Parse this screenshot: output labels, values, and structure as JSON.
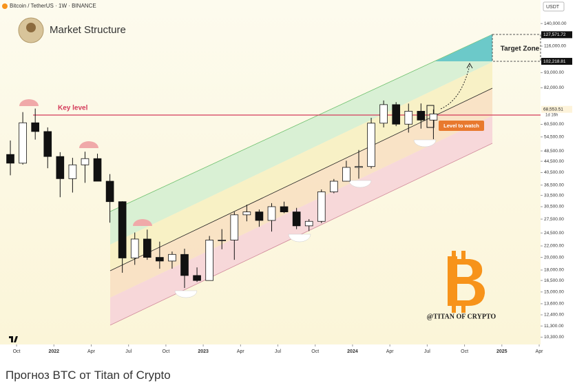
{
  "chart_data": {
    "type": "candlestick",
    "title": "Market Structure",
    "subtitle": "Bitcoin / TetherUS · 1W · BINANCE",
    "currency": "USDT",
    "countdown": "1d 16h",
    "annotations": {
      "key_level": "Key level",
      "level_to_watch": "Level to watch",
      "target_zone": "Target Zone",
      "watermark": "@TITAN OF CRYPTO"
    },
    "log": true,
    "xlim": [
      "2021-09",
      "2025-04"
    ],
    "xticks": [
      {
        "value": "2021-10",
        "label": "Oct"
      },
      {
        "value": "2022-01",
        "label": "2022"
      },
      {
        "value": "2022-04",
        "label": "Apr"
      },
      {
        "value": "2022-07",
        "label": "Jul"
      },
      {
        "value": "2022-10",
        "label": "Oct"
      },
      {
        "value": "2023-01",
        "label": "2023"
      },
      {
        "value": "2023-04",
        "label": "Apr"
      },
      {
        "value": "2023-07",
        "label": "Jul"
      },
      {
        "value": "2023-10",
        "label": "Oct"
      },
      {
        "value": "2024-01",
        "label": "2024"
      },
      {
        "value": "2024-04",
        "label": "Apr"
      },
      {
        "value": "2024-07",
        "label": "Jul"
      },
      {
        "value": "2024-10",
        "label": "Oct"
      },
      {
        "value": "2025-01",
        "label": "2025"
      },
      {
        "value": "2025-04",
        "label": "Apr"
      }
    ],
    "ylim": [
      9690,
      170300
    ],
    "yticks": [
      {
        "value": 140000,
        "label": "140,000.00"
      },
      {
        "value": 116000,
        "label": "116,000.00"
      },
      {
        "value": 93000,
        "label": "93,000.00"
      },
      {
        "value": 82000,
        "label": "82,000.00"
      },
      {
        "value": 60500,
        "label": "60,500.00"
      },
      {
        "value": 54500,
        "label": "54,500.00"
      },
      {
        "value": 48500,
        "label": "48,500.00"
      },
      {
        "value": 44500,
        "label": "44,500.00"
      },
      {
        "value": 40500,
        "label": "40,500.00"
      },
      {
        "value": 36500,
        "label": "36,500.00"
      },
      {
        "value": 33500,
        "label": "33,500.00"
      },
      {
        "value": 30500,
        "label": "30,500.00"
      },
      {
        "value": 27500,
        "label": "27,500.00"
      },
      {
        "value": 24500,
        "label": "24,500.00"
      },
      {
        "value": 22000,
        "label": "22,000.00"
      },
      {
        "value": 20000,
        "label": "20,000.00"
      },
      {
        "value": 18000,
        "label": "18,000.00"
      },
      {
        "value": 16500,
        "label": "16,500.00"
      },
      {
        "value": 15000,
        "label": "15,000.00"
      },
      {
        "value": 13600,
        "label": "13,600.00"
      },
      {
        "value": 12400,
        "label": "12,400.00"
      },
      {
        "value": 11300,
        "label": "11,300.00"
      },
      {
        "value": 10300,
        "label": "10,300.00"
      }
    ],
    "price_labels": [
      {
        "value": 127571.72,
        "label": "127,571.72"
      },
      {
        "value": 102218.81,
        "label": "102,218.81"
      },
      {
        "value": 68553.51,
        "label": "68,553.51"
      }
    ],
    "x": [
      "2021-09",
      "2021-10",
      "2021-11",
      "2021-12",
      "2022-01",
      "2022-02",
      "2022-03",
      "2022-04",
      "2022-05",
      "2022-06",
      "2022-07",
      "2022-08",
      "2022-09",
      "2022-10",
      "2022-11",
      "2022-12",
      "2023-01",
      "2023-02",
      "2023-03",
      "2023-04",
      "2023-05",
      "2023-06",
      "2023-07",
      "2023-08",
      "2023-09",
      "2023-10",
      "2023-11",
      "2023-12",
      "2024-01",
      "2024-02",
      "2024-03",
      "2024-04",
      "2024-05",
      "2024-06",
      "2024-07"
    ],
    "open": [
      47100,
      43800,
      61300,
      57000,
      46300,
      38500,
      43200,
      45500,
      37700,
      31800,
      19900,
      23300,
      20000,
      19400,
      20500,
      17200,
      16500,
      23100,
      23100,
      28500,
      29200,
      27200,
      30500,
      29200,
      26000,
      27000,
      34500,
      37700,
      42300,
      42600,
      61100,
      71300,
      60600,
      67500,
      62700
    ],
    "high": [
      52900,
      67000,
      69000,
      59000,
      48000,
      45800,
      48200,
      47400,
      40000,
      31900,
      24600,
      25200,
      22800,
      21000,
      21500,
      18400,
      23900,
      25300,
      29200,
      31000,
      29800,
      31400,
      31800,
      30200,
      27500,
      35200,
      38400,
      44700,
      48900,
      63900,
      73800,
      72800,
      71900,
      72000,
      68500
    ],
    "low": [
      39600,
      43300,
      53300,
      42000,
      33000,
      34300,
      37200,
      37700,
      26700,
      17600,
      18800,
      19600,
      18200,
      18200,
      15500,
      16300,
      16500,
      21400,
      19600,
      27000,
      25800,
      24800,
      28900,
      25300,
      24900,
      26600,
      34100,
      37600,
      38500,
      41900,
      59000,
      59600,
      56500,
      58400,
      53500
    ],
    "close": [
      43800,
      61300,
      57000,
      46300,
      38500,
      43200,
      45500,
      37700,
      31800,
      19900,
      23300,
      20000,
      19400,
      20500,
      17200,
      16500,
      23100,
      23100,
      28500,
      29200,
      27200,
      30500,
      29200,
      26000,
      27000,
      34500,
      37700,
      42300,
      42600,
      61100,
      71300,
      60600,
      67500,
      62700,
      66000
    ]
  },
  "caption": "Прогноз BTC от Titan of Crypto"
}
